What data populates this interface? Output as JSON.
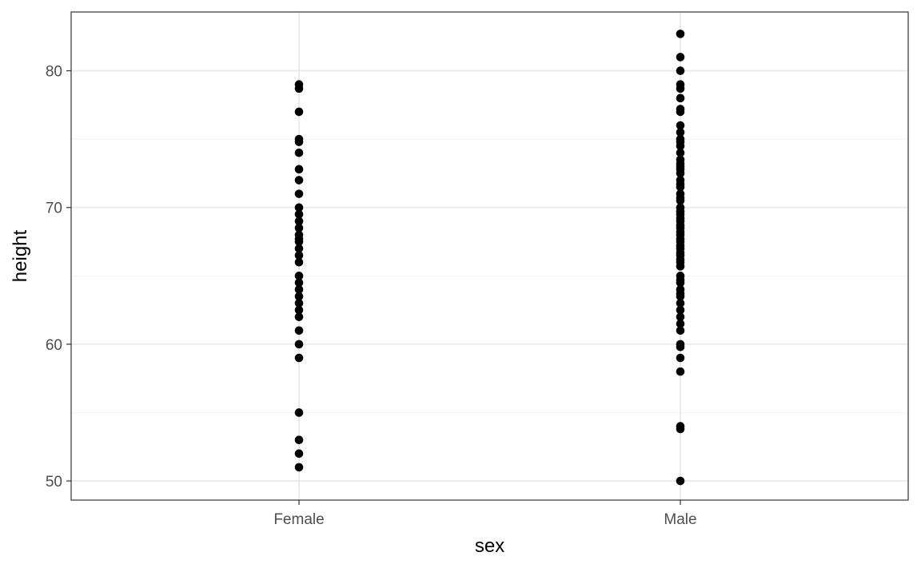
{
  "chart_data": {
    "type": "scatter",
    "xlabel": "sex",
    "ylabel": "height",
    "categories": [
      "Female",
      "Male"
    ],
    "ylim": [
      48.6,
      84.3
    ],
    "yticks": [
      50,
      60,
      70,
      80
    ],
    "grid": true,
    "series": [
      {
        "category": "Female",
        "values": [
          79,
          78.7,
          77,
          75,
          74.8,
          74,
          72.8,
          72,
          71,
          70,
          69.5,
          69,
          68.5,
          68,
          67.7,
          67.5,
          67,
          66.5,
          66,
          65,
          64.5,
          64,
          63.5,
          63,
          62.5,
          62,
          61,
          60,
          59,
          55,
          53,
          52,
          51
        ]
      },
      {
        "category": "Male",
        "values": [
          82.7,
          81,
          80,
          79,
          78.7,
          78,
          77.2,
          77,
          76,
          75.5,
          75,
          74.8,
          74.5,
          74,
          73.5,
          73.2,
          73,
          72.8,
          72.5,
          72,
          71.7,
          71.5,
          71,
          70.7,
          70.5,
          70,
          69.7,
          69.5,
          69.2,
          69,
          68.7,
          68.5,
          68.2,
          68,
          67.7,
          67.5,
          67.2,
          67,
          66.7,
          66.5,
          66.2,
          66,
          65.7,
          65,
          64.7,
          64.5,
          64,
          63.7,
          63.5,
          63,
          62.5,
          62,
          61.5,
          61,
          60,
          59.8,
          59,
          58,
          54,
          53.8,
          50
        ]
      }
    ],
    "colors": {
      "points": "#000000",
      "grid_major": "#ebebeb",
      "grid_minor": "#f2f2f2",
      "panel_border": "#333333",
      "tick_text": "#4d4d4d"
    }
  }
}
